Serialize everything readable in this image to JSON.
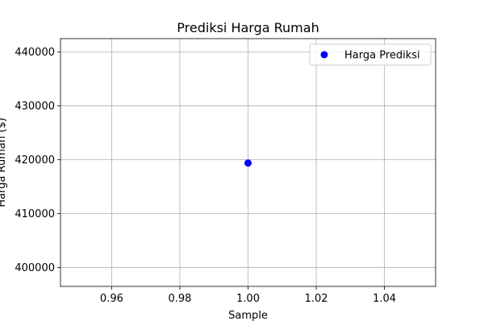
{
  "chart_data": {
    "type": "scatter",
    "title": "Prediksi Harga Rumah",
    "xlabel": "Sample",
    "ylabel": "Harga Rumah ($)",
    "xlim": [
      0.945,
      1.055
    ],
    "ylim": [
      396500,
      442500
    ],
    "x_ticks": [
      0.96,
      0.98,
      1.0,
      1.02,
      1.04
    ],
    "x_tick_labels": [
      "0.96",
      "0.98",
      "1.00",
      "1.02",
      "1.04"
    ],
    "y_ticks": [
      400000,
      410000,
      420000,
      430000,
      440000
    ],
    "y_tick_labels": [
      "400000",
      "410000",
      "420000",
      "430000",
      "440000"
    ],
    "grid": true,
    "legend_position": "top-right",
    "series": [
      {
        "name": "Harga Prediksi",
        "color": "#0000ff",
        "points": [
          {
            "x": 1.0,
            "y": 419400
          }
        ]
      }
    ]
  }
}
